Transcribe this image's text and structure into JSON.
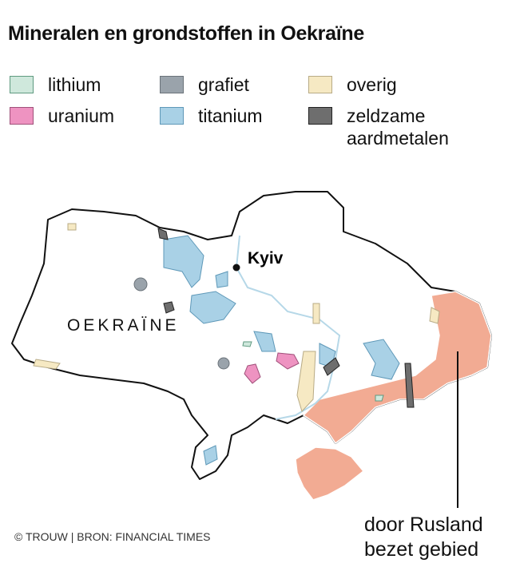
{
  "title": "Mineralen en grondstoffen in Oekraïne",
  "legend": [
    {
      "label": "lithium",
      "fill": "#cfe8dc",
      "stroke": "#5f9a80"
    },
    {
      "label": "grafiet",
      "fill": "#9aa3ab",
      "stroke": "#6b737a"
    },
    {
      "label": "overig",
      "fill": "#f6e9c3",
      "stroke": "#b8ab86"
    },
    {
      "label": "uranium",
      "fill": "#ee93c1",
      "stroke": "#a0507a"
    },
    {
      "label": "titanium",
      "fill": "#a9d1e6",
      "stroke": "#5e98b8"
    },
    {
      "label": "zeldzame aardmetalen",
      "fill": "#6e6e6e",
      "stroke": "#222"
    }
  ],
  "map": {
    "country_label": "OEKRAÏNE",
    "city": "Kyiv",
    "occupied_label_line1": "door Rusland",
    "occupied_label_line2": "bezet gebied",
    "occupied_color": "#f2ab93",
    "river_color": "#b6d8e8"
  },
  "credit": "© TROUW | BRON: FINANCIAL TIMES"
}
